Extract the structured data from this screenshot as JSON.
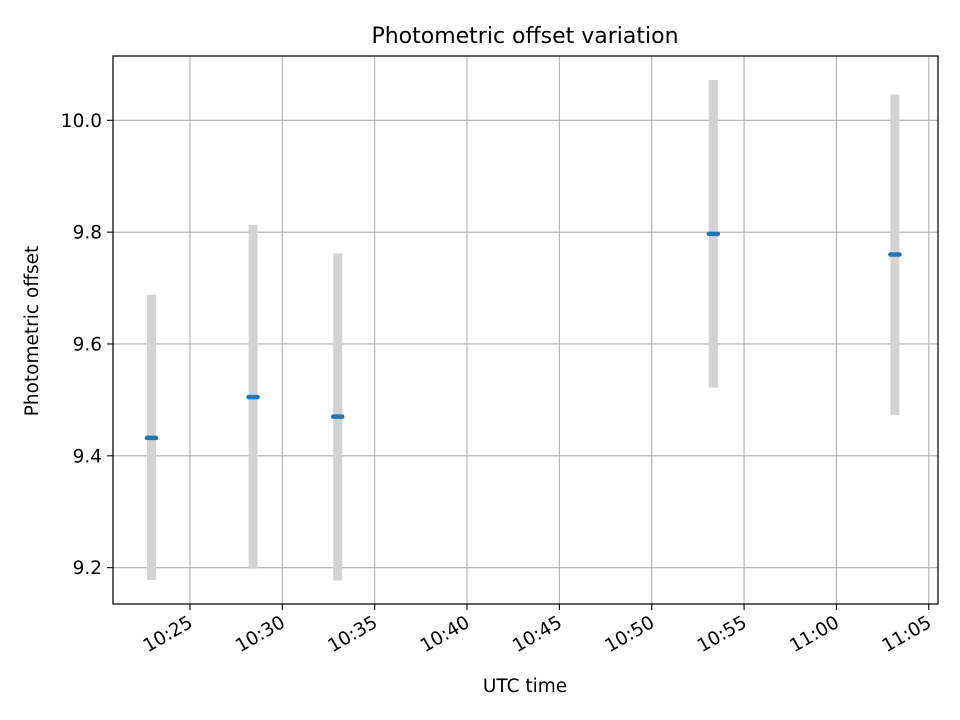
{
  "chart_data": {
    "type": "scatter",
    "title": "Photometric offset variation",
    "xlabel": "UTC time",
    "ylabel": "Photometric offset",
    "x_ticks": [
      "10:25",
      "10:30",
      "10:35",
      "10:40",
      "10:45",
      "10:50",
      "10:55",
      "11:00",
      "11:05"
    ],
    "y_ticks": [
      "9.2",
      "9.4",
      "9.6",
      "9.8",
      "10.0"
    ],
    "xlim": [
      "10:20:50",
      "11:05:30"
    ],
    "ylim": [
      9.135,
      10.115
    ],
    "grid": true,
    "points": [
      {
        "x": "10:22:55",
        "y": 9.432,
        "err_low": 9.178,
        "err_high": 9.688
      },
      {
        "x": "10:28:25",
        "y": 9.505,
        "err_low": 9.198,
        "err_high": 9.813
      },
      {
        "x": "10:33:00",
        "y": 9.47,
        "err_low": 9.177,
        "err_high": 9.762
      },
      {
        "x": "10:53:20",
        "y": 9.797,
        "err_low": 9.522,
        "err_high": 10.072
      },
      {
        "x": "11:03:10",
        "y": 9.76,
        "err_low": 9.473,
        "err_high": 10.046
      }
    ],
    "colors": {
      "marker": "#1f77b4",
      "errorbar": "#d3d3d3",
      "grid": "#b0b0b0",
      "axis": "#000000"
    }
  }
}
